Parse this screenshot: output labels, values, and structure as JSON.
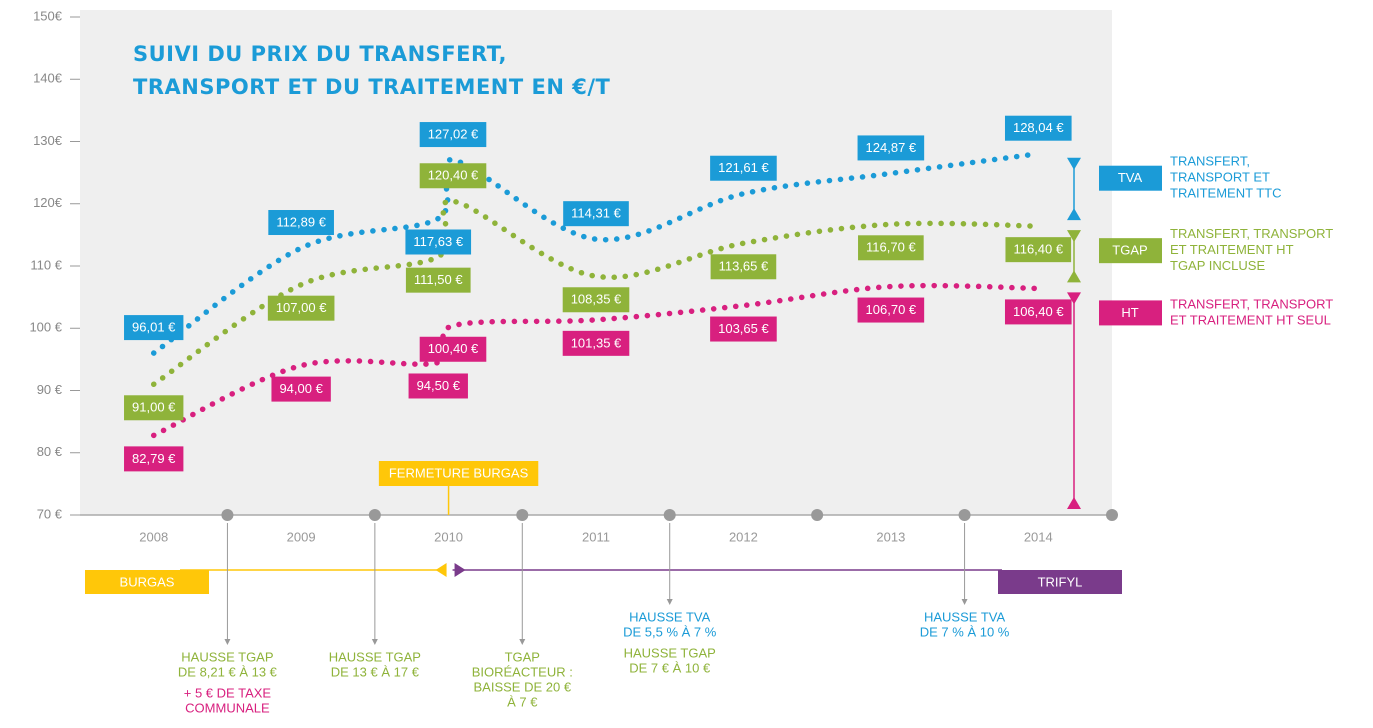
{
  "chart_data": {
    "type": "line",
    "title": [
      "SUIVI DU PRIX DU TRANSFERT,",
      "TRANSPORT ET DU TRAITEMENT EN €/T"
    ],
    "x": [
      2008,
      2009,
      2009.93,
      2010.03,
      2011,
      2012,
      2013,
      2014
    ],
    "xlim": [
      2007.5,
      2014.5
    ],
    "xticks": [
      2008,
      2009,
      2010,
      2011,
      2012,
      2013,
      2014
    ],
    "ylim": [
      70,
      150
    ],
    "yticks": [
      {
        "value": 70,
        "label": "70 €"
      },
      {
        "value": 80,
        "label": "80 €"
      },
      {
        "value": 90,
        "label": "90 €"
      },
      {
        "value": 100,
        "label": "100 €"
      },
      {
        "value": 110,
        "label": "110 €"
      },
      {
        "value": 120,
        "label": "120€"
      },
      {
        "value": 130,
        "label": "130€"
      },
      {
        "value": 140,
        "label": "140€"
      },
      {
        "value": 150,
        "label": "150€"
      }
    ],
    "series": [
      {
        "name": "TVA",
        "color": "#1b9bd7",
        "description": [
          "TRANSFERT,",
          "TRANSPORT ET",
          "TRAITEMENT TTC"
        ],
        "values": [
          96.01,
          112.89,
          117.63,
          127.02,
          114.31,
          121.61,
          124.87,
          128.04
        ],
        "value_labels": [
          "96,01 €",
          "112,89 €",
          "117,63 €",
          "127,02 €",
          "114,31 €",
          "121,61 €",
          "124,87 €",
          "128,04 €"
        ]
      },
      {
        "name": "TGAP",
        "color": "#8fb33a",
        "description": [
          "TRANSFERT, TRANSPORT",
          "ET TRAITEMENT HT",
          "TGAP INCLUSE"
        ],
        "values": [
          91.0,
          107.0,
          111.5,
          120.4,
          108.35,
          113.65,
          116.7,
          116.4
        ],
        "value_labels": [
          "91,00 €",
          "107,00 €",
          "111,50 €",
          "120,40 €",
          "108,35 €",
          "113,65 €",
          "116,70 €",
          "116,40 €"
        ]
      },
      {
        "name": "HT",
        "color": "#d8207f",
        "description": [
          "TRANSFERT, TRANSPORT",
          "ET TRAITEMENT HT SEUL"
        ],
        "values": [
          82.79,
          94.0,
          94.5,
          100.4,
          101.35,
          103.65,
          106.7,
          106.4
        ],
        "value_labels": [
          "82,79 €",
          "94,00 €",
          "94,50 €",
          "100,40 €",
          "101,35 €",
          "103,65 €",
          "106,70 €",
          "106,40 €"
        ]
      }
    ],
    "marker_annotation": {
      "text": "FERMETURE BURGAS",
      "x": 2010,
      "color": "#ffc709"
    },
    "timeline": [
      {
        "name": "BURGAS",
        "color": "#ffc709",
        "start": 2007.5,
        "end": 2010
      },
      {
        "name": "TRIFYL",
        "color": "#7a3b8b",
        "start": 2010,
        "end": 2014.5
      }
    ],
    "events": [
      {
        "x": 2008.5,
        "notes": [
          {
            "color": "#8fb33a",
            "lines": [
              "HAUSSE TGAP",
              "DE 8,21 € À 13 €"
            ]
          },
          {
            "color": "#d8207f",
            "lines": [
              "+ 5 € DE TAXE",
              "COMMUNALE"
            ]
          }
        ]
      },
      {
        "x": 2009.5,
        "notes": [
          {
            "color": "#8fb33a",
            "lines": [
              "HAUSSE TGAP",
              "DE 13 € À 17 €"
            ]
          }
        ]
      },
      {
        "x": 2010.5,
        "notes": [
          {
            "color": "#8fb33a",
            "lines": [
              "TGAP",
              "BIORÉACTEUR :",
              "BAISSE DE 20 €",
              "À 7 €"
            ]
          }
        ]
      },
      {
        "x": 2011.5,
        "notes": [
          {
            "color": "#1b9bd7",
            "lines": [
              "HAUSSE TVA",
              "DE 5,5 % À 7 %"
            ]
          },
          {
            "color": "#8fb33a",
            "lines": [
              "HAUSSE TGAP",
              "DE 7 € À 10 €"
            ]
          }
        ]
      },
      {
        "x": 2013.5,
        "notes": [
          {
            "color": "#1b9bd7",
            "lines": [
              "HAUSSE TVA",
              "DE 7 % À 10 %"
            ]
          }
        ]
      }
    ]
  }
}
